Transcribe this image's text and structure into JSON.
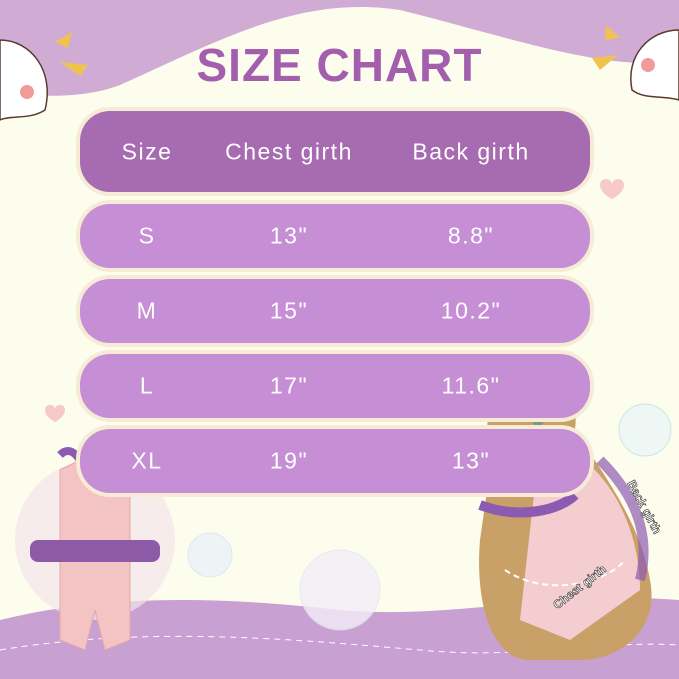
{
  "title": "SIZE CHART",
  "table": {
    "headers": [
      "Size",
      "Chest girth",
      "Back girth"
    ],
    "rows": [
      [
        "S",
        "13\"",
        "8.8\""
      ],
      [
        "M",
        "15\"",
        "10.2\""
      ],
      [
        "L",
        "17\"",
        "11.6\""
      ],
      [
        "XL",
        "19\"",
        "13\""
      ]
    ]
  },
  "annotations": {
    "back": "Back girth",
    "chest": "Chest girth"
  },
  "colors": {
    "header": "#a66bb1",
    "row": "#c68ed4",
    "title": "#a35fae",
    "background": "#fdfdee",
    "top_band": "#d0acd5"
  }
}
